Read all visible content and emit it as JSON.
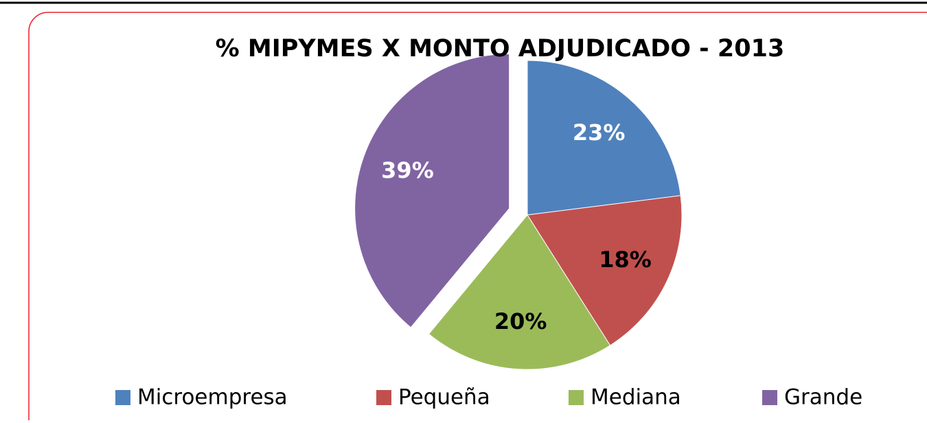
{
  "chart_data": {
    "type": "pie",
    "title": "% MIPYMES X MONTO ADJUDICADO  - 2013",
    "categories": [
      "Microempresa",
      "Pequeña",
      "Mediana",
      "Grande"
    ],
    "values": [
      23,
      18,
      20,
      39
    ],
    "value_labels": [
      "23%",
      "18%",
      "20%",
      "39%"
    ],
    "colors": [
      "#4f81bd",
      "#c0504d",
      "#9bbb59",
      "#8064a2"
    ],
    "label_colors": [
      "#ffffff",
      "#000000",
      "#000000",
      "#ffffff"
    ],
    "legend": "bottom"
  }
}
